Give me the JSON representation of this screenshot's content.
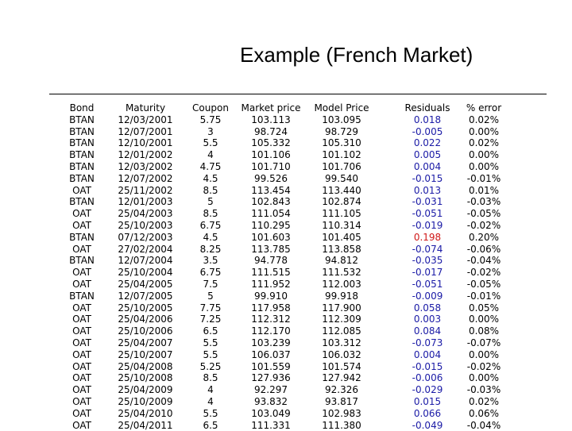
{
  "title": "Example (French Market)",
  "headers": {
    "bond": "Bond",
    "maturity": "Maturity",
    "coupon": "Coupon",
    "market_price": "Market price",
    "model_price": "Model Price",
    "residuals": "Residuals",
    "pct_error": "% error"
  },
  "colors": {
    "residual_text": "#1a1aa6",
    "highlight": "#d01818"
  },
  "rows": [
    {
      "bond": "BTAN",
      "maturity": "12/03/2001",
      "coupon": "5.75",
      "market": "103.113",
      "model": "103.095",
      "residual": "0.018",
      "error": "0.02%"
    },
    {
      "bond": "BTAN",
      "maturity": "12/07/2001",
      "coupon": "3",
      "market": "98.724",
      "model": "98.729",
      "residual": "-0.005",
      "error": "0.00%"
    },
    {
      "bond": "BTAN",
      "maturity": "12/10/2001",
      "coupon": "5.5",
      "market": "105.332",
      "model": "105.310",
      "residual": "0.022",
      "error": "0.02%"
    },
    {
      "bond": "BTAN",
      "maturity": "12/01/2002",
      "coupon": "4",
      "market": "101.106",
      "model": "101.102",
      "residual": "0.005",
      "error": "0.00%"
    },
    {
      "bond": "BTAN",
      "maturity": "12/03/2002",
      "coupon": "4.75",
      "market": "101.710",
      "model": "101.706",
      "residual": "0.004",
      "error": "0.00%"
    },
    {
      "bond": "BTAN",
      "maturity": "12/07/2002",
      "coupon": "4.5",
      "market": "99.526",
      "model": "99.540",
      "residual": "-0.015",
      "error": "-0.01%"
    },
    {
      "bond": "OAT",
      "maturity": "25/11/2002",
      "coupon": "8.5",
      "market": "113.454",
      "model": "113.440",
      "residual": "0.013",
      "error": "0.01%"
    },
    {
      "bond": "BTAN",
      "maturity": "12/01/2003",
      "coupon": "5",
      "market": "102.843",
      "model": "102.874",
      "residual": "-0.031",
      "error": "-0.03%"
    },
    {
      "bond": "OAT",
      "maturity": "25/04/2003",
      "coupon": "8.5",
      "market": "111.054",
      "model": "111.105",
      "residual": "-0.051",
      "error": "-0.05%"
    },
    {
      "bond": "OAT",
      "maturity": "25/10/2003",
      "coupon": "6.75",
      "market": "110.295",
      "model": "110.314",
      "residual": "-0.019",
      "error": "-0.02%"
    },
    {
      "bond": "BTAN",
      "maturity": "07/12/2003",
      "coupon": "4.5",
      "market": "101.603",
      "model": "101.405",
      "residual": "0.198",
      "error": "0.20%",
      "highlight": true
    },
    {
      "bond": "OAT",
      "maturity": "27/02/2004",
      "coupon": "8.25",
      "market": "113.785",
      "model": "113.858",
      "residual": "-0.074",
      "error": "-0.06%"
    },
    {
      "bond": "BTAN",
      "maturity": "12/07/2004",
      "coupon": "3.5",
      "market": "94.778",
      "model": "94.812",
      "residual": "-0.035",
      "error": "-0.04%"
    },
    {
      "bond": "OAT",
      "maturity": "25/10/2004",
      "coupon": "6.75",
      "market": "111.515",
      "model": "111.532",
      "residual": "-0.017",
      "error": "-0.02%"
    },
    {
      "bond": "OAT",
      "maturity": "25/04/2005",
      "coupon": "7.5",
      "market": "111.952",
      "model": "112.003",
      "residual": "-0.051",
      "error": "-0.05%"
    },
    {
      "bond": "BTAN",
      "maturity": "12/07/2005",
      "coupon": "5",
      "market": "99.910",
      "model": "99.918",
      "residual": "-0.009",
      "error": "-0.01%"
    },
    {
      "bond": "OAT",
      "maturity": "25/10/2005",
      "coupon": "7.75",
      "market": "117.958",
      "model": "117.900",
      "residual": "0.058",
      "error": "0.05%"
    },
    {
      "bond": "OAT",
      "maturity": "25/04/2006",
      "coupon": "7.25",
      "market": "112.312",
      "model": "112.309",
      "residual": "0.003",
      "error": "0.00%"
    },
    {
      "bond": "OAT",
      "maturity": "25/10/2006",
      "coupon": "6.5",
      "market": "112.170",
      "model": "112.085",
      "residual": "0.084",
      "error": "0.08%"
    },
    {
      "bond": "OAT",
      "maturity": "25/04/2007",
      "coupon": "5.5",
      "market": "103.239",
      "model": "103.312",
      "residual": "-0.073",
      "error": "-0.07%"
    },
    {
      "bond": "OAT",
      "maturity": "25/10/2007",
      "coupon": "5.5",
      "market": "106.037",
      "model": "106.032",
      "residual": "0.004",
      "error": "0.00%"
    },
    {
      "bond": "OAT",
      "maturity": "25/04/2008",
      "coupon": "5.25",
      "market": "101.559",
      "model": "101.574",
      "residual": "-0.015",
      "error": "-0.02%"
    },
    {
      "bond": "OAT",
      "maturity": "25/10/2008",
      "coupon": "8.5",
      "market": "127.936",
      "model": "127.942",
      "residual": "-0.006",
      "error": "0.00%"
    },
    {
      "bond": "OAT",
      "maturity": "25/04/2009",
      "coupon": "4",
      "market": "92.297",
      "model": "92.326",
      "residual": "-0.029",
      "error": "-0.03%"
    },
    {
      "bond": "OAT",
      "maturity": "25/10/2009",
      "coupon": "4",
      "market": "93.832",
      "model": "93.817",
      "residual": "0.015",
      "error": "0.02%"
    },
    {
      "bond": "OAT",
      "maturity": "25/04/2010",
      "coupon": "5.5",
      "market": "103.049",
      "model": "102.983",
      "residual": "0.066",
      "error": "0.06%"
    },
    {
      "bond": "OAT",
      "maturity": "25/04/2011",
      "coupon": "6.5",
      "market": "111.331",
      "model": "111.380",
      "residual": "-0.049",
      "error": "-0.04%"
    }
  ]
}
